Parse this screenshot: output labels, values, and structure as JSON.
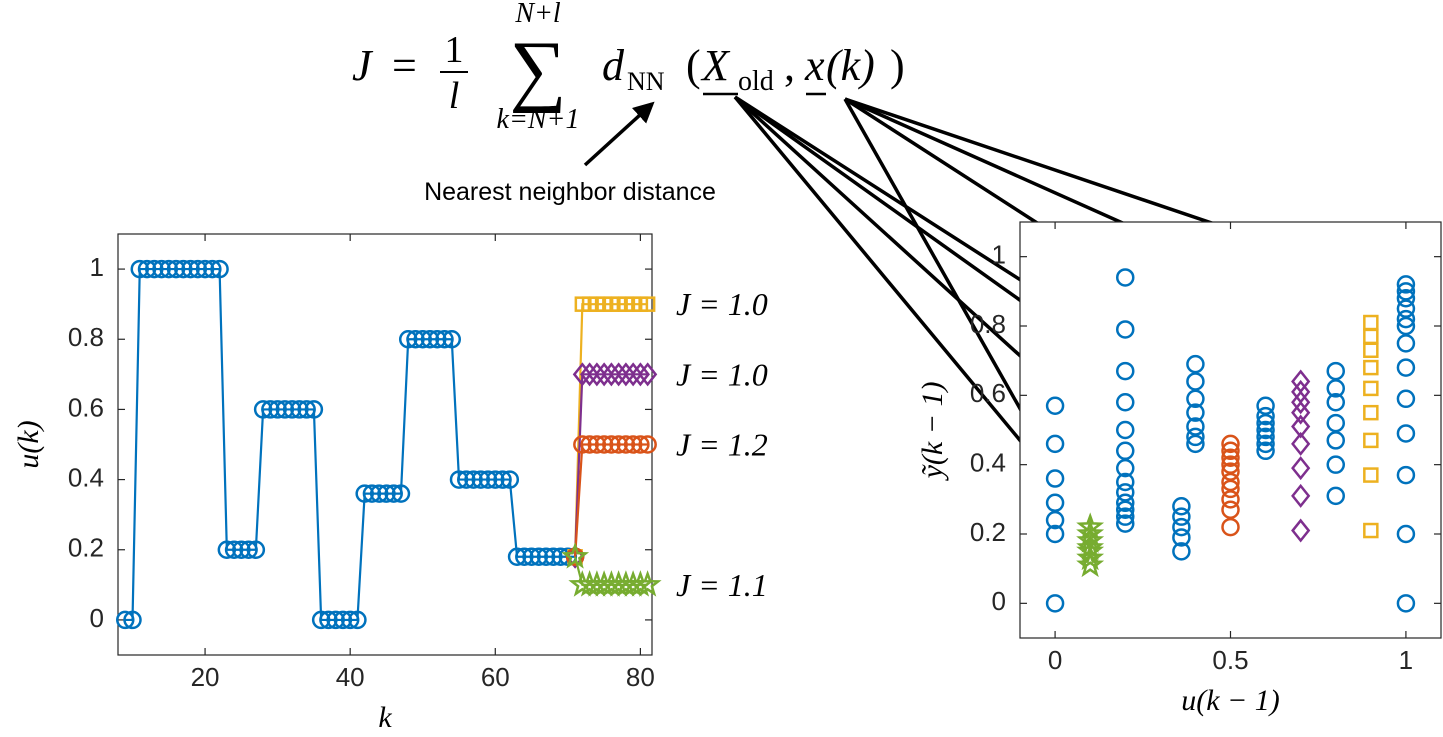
{
  "formula": {
    "lhs": "J",
    "eq": "=",
    "num": "1",
    "den": "l",
    "sum": "∑",
    "upper": "N+l",
    "lower": "k=N+1",
    "d": "d",
    "d_sub": "NN",
    "lparen": "(",
    "X": "X",
    "X_sub": "old",
    "sep": ",",
    "x": "x",
    "karg": "(k)",
    "rparen": ")"
  },
  "annotation": "Nearest neighbor distance",
  "chart_data": [
    {
      "type": "line",
      "xlabel": "k",
      "ylabel": "u(k)",
      "xlim": [
        8,
        81.6
      ],
      "ylim": [
        -0.1,
        1.1
      ],
      "xticks": [
        20,
        40,
        60,
        80
      ],
      "yticks": [
        0,
        0.2,
        0.4,
        0.6,
        0.8,
        1
      ],
      "series": [
        {
          "color": "#0072BD",
          "marker": "circle",
          "x": [
            9,
            10,
            11,
            12,
            13,
            14,
            15,
            16,
            17,
            18,
            19,
            20,
            21,
            22,
            23,
            24,
            25,
            26,
            27,
            28,
            29,
            30,
            31,
            32,
            33,
            34,
            35,
            36,
            37,
            38,
            39,
            40,
            41,
            42,
            43,
            44,
            45,
            46,
            47,
            48,
            49,
            50,
            51,
            52,
            53,
            54,
            55,
            56,
            57,
            58,
            59,
            60,
            61,
            62,
            63,
            64,
            65,
            66,
            67,
            68,
            69,
            70,
            71
          ],
          "values": [
            0,
            0,
            1,
            1,
            1,
            1,
            1,
            1,
            1,
            1,
            1,
            1,
            1,
            1,
            0.2,
            0.2,
            0.2,
            0.2,
            0.2,
            0.6,
            0.6,
            0.6,
            0.6,
            0.6,
            0.6,
            0.6,
            0.6,
            0,
            0,
            0,
            0,
            0,
            0,
            0.36,
            0.36,
            0.36,
            0.36,
            0.36,
            0.36,
            0.8,
            0.8,
            0.8,
            0.8,
            0.8,
            0.8,
            0.8,
            0.4,
            0.4,
            0.4,
            0.4,
            0.4,
            0.4,
            0.4,
            0.4,
            0.18,
            0.18,
            0.18,
            0.18,
            0.18,
            0.18,
            0.18,
            0.18,
            0.18
          ]
        },
        {
          "name": "J = 1.0",
          "color": "#EDB120",
          "marker": "square",
          "x": [
            71,
            72,
            73,
            74,
            75,
            76,
            77,
            78,
            79,
            80,
            81
          ],
          "values": [
            0.18,
            0.9,
            0.9,
            0.9,
            0.9,
            0.9,
            0.9,
            0.9,
            0.9,
            0.9,
            0.9
          ]
        },
        {
          "name": "J = 1.0",
          "color": "#7E2F8E",
          "marker": "diamond",
          "x": [
            71,
            72,
            73,
            74,
            75,
            76,
            77,
            78,
            79,
            80,
            81
          ],
          "values": [
            0.18,
            0.7,
            0.7,
            0.7,
            0.7,
            0.7,
            0.7,
            0.7,
            0.7,
            0.7,
            0.7
          ]
        },
        {
          "name": "J = 1.2",
          "color": "#D95319",
          "marker": "circle",
          "x": [
            71,
            72,
            73,
            74,
            75,
            76,
            77,
            78,
            79,
            80,
            81
          ],
          "values": [
            0.18,
            0.5,
            0.5,
            0.5,
            0.5,
            0.5,
            0.5,
            0.5,
            0.5,
            0.5,
            0.5
          ]
        },
        {
          "name": "J = 1.1",
          "color": "#77AC30",
          "marker": "star",
          "x": [
            71,
            72,
            73,
            74,
            75,
            76,
            77,
            78,
            79,
            80,
            81
          ],
          "values": [
            0.18,
            0.1,
            0.1,
            0.1,
            0.1,
            0.1,
            0.1,
            0.1,
            0.1,
            0.1,
            0.1
          ]
        }
      ]
    },
    {
      "type": "scatter",
      "xlabel": "u(k − 1)",
      "ylabel": "ỹ(k − 1)",
      "xlim": [
        -0.1,
        1.1
      ],
      "ylim": [
        -0.1,
        1.1
      ],
      "xticks": [
        0,
        0.5,
        1
      ],
      "yticks": [
        0,
        0.2,
        0.4,
        0.6,
        0.8,
        1
      ],
      "series": [
        {
          "color": "#0072BD",
          "marker": "circle",
          "x": [
            0,
            0,
            0,
            0,
            0,
            0,
            0,
            0.2,
            0.2,
            0.2,
            0.2,
            0.2,
            0.2,
            0.2,
            0.2,
            0.2,
            0.2,
            0.2,
            0.2,
            0.2,
            0.36,
            0.36,
            0.36,
            0.36,
            0.36,
            0.4,
            0.4,
            0.4,
            0.4,
            0.4,
            0.4,
            0.4,
            0.6,
            0.6,
            0.6,
            0.6,
            0.6,
            0.6,
            0.6,
            0.8,
            0.8,
            0.8,
            0.8,
            0.8,
            0.8,
            0.8,
            1,
            1,
            1,
            1,
            1,
            1,
            1,
            1,
            1,
            1,
            1,
            1,
            1
          ],
          "values": [
            0,
            0.2,
            0.24,
            0.29,
            0.36,
            0.46,
            0.57,
            0.94,
            0.79,
            0.67,
            0.58,
            0.5,
            0.44,
            0.39,
            0.35,
            0.32,
            0.29,
            0.27,
            0.25,
            0.23,
            0.15,
            0.19,
            0.22,
            0.25,
            0.28,
            0.69,
            0.64,
            0.59,
            0.55,
            0.51,
            0.48,
            0.46,
            0.57,
            0.54,
            0.52,
            0.5,
            0.48,
            0.46,
            0.44,
            0.67,
            0.62,
            0.58,
            0.52,
            0.47,
            0.4,
            0.31,
            0.92,
            0.9,
            0.88,
            0.85,
            0.82,
            0.8,
            0.75,
            0.68,
            0.59,
            0.49,
            0.37,
            0.2,
            0
          ]
        },
        {
          "color": "#D95319",
          "marker": "circle",
          "x": [
            0.5,
            0.5,
            0.5,
            0.5,
            0.5,
            0.5,
            0.5,
            0.5,
            0.5,
            0.5
          ],
          "values": [
            0.46,
            0.44,
            0.42,
            0.4,
            0.38,
            0.35,
            0.33,
            0.3,
            0.27,
            0.22
          ]
        },
        {
          "color": "#7E2F8E",
          "marker": "diamond",
          "x": [
            0.7,
            0.7,
            0.7,
            0.7,
            0.7,
            0.7,
            0.7,
            0.7,
            0.7
          ],
          "values": [
            0.64,
            0.61,
            0.58,
            0.55,
            0.51,
            0.46,
            0.39,
            0.31,
            0.21
          ]
        },
        {
          "color": "#EDB120",
          "marker": "square",
          "x": [
            0.9,
            0.9,
            0.9,
            0.9,
            0.9,
            0.9,
            0.9,
            0.9,
            0.9
          ],
          "values": [
            0.81,
            0.77,
            0.73,
            0.68,
            0.62,
            0.55,
            0.47,
            0.37,
            0.21
          ]
        },
        {
          "color": "#77AC30",
          "marker": "star",
          "x": [
            0.1,
            0.1,
            0.1,
            0.1,
            0.1,
            0.1,
            0.1
          ],
          "values": [
            0.22,
            0.2,
            0.18,
            0.16,
            0.15,
            0.13,
            0.11
          ]
        }
      ]
    }
  ]
}
